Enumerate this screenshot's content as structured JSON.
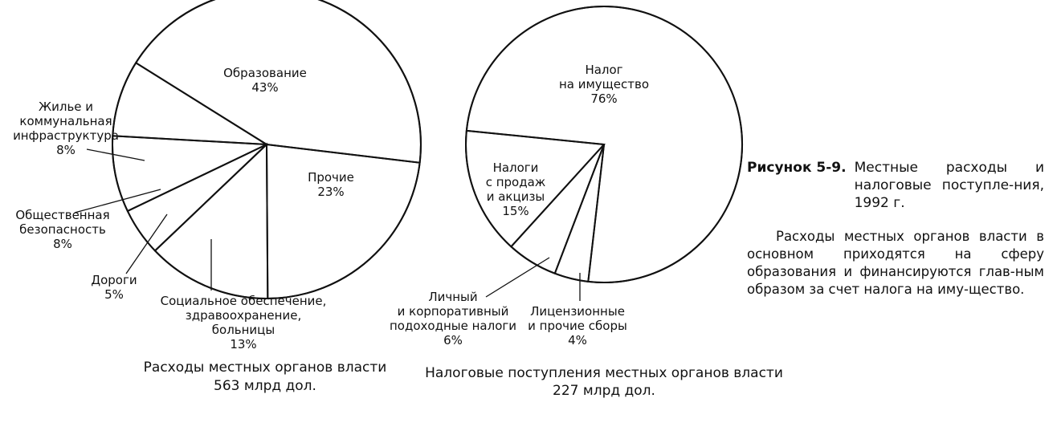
{
  "figure": {
    "id": "Рисунок 5-9.",
    "caption": "Местные расходы и налоговые поступле-ния, 1992 г.",
    "description": "Расходы местных органов власти в основном приходятся на сферу образования и финансируются глав-ным образом за счет налога на иму-щество."
  },
  "chart_data": [
    {
      "type": "pie",
      "title": "Расходы местных органов власти",
      "subtitle": "563 млрд дол.",
      "slices": [
        {
          "label": [
            "Образование"
          ],
          "percent_label": "43%",
          "value": 43
        },
        {
          "label": [
            "Прочие"
          ],
          "percent_label": "23%",
          "value": 23
        },
        {
          "label": [
            "Социальное обеспечение,",
            "здравоохранение,",
            "больницы"
          ],
          "percent_label": "13%",
          "value": 13
        },
        {
          "label": [
            "Дороги"
          ],
          "percent_label": "5%",
          "value": 5
        },
        {
          "label": [
            "Общественная",
            "безопасность"
          ],
          "percent_label": "8%",
          "value": 8
        },
        {
          "label": [
            "Жилье и",
            "коммунальная",
            "инфраструктура"
          ],
          "percent_label": "8%",
          "value": 8
        }
      ]
    },
    {
      "type": "pie",
      "title": "Налоговые поступления местных органов власти",
      "subtitle": "227 млрд дол.",
      "slices": [
        {
          "label": [
            "Налог",
            "на имущество"
          ],
          "percent_label": "76%",
          "value": 76
        },
        {
          "label": [
            "Лицензионные",
            "и прочие сборы"
          ],
          "percent_label": "4%",
          "value": 4
        },
        {
          "label": [
            "Личный",
            "и корпоративный",
            "подоходные налоги"
          ],
          "percent_label": "6%",
          "value": 6
        },
        {
          "label": [
            "Налоги",
            "с продаж",
            "и акцизы"
          ],
          "percent_label": "15%",
          "value": 15
        }
      ]
    }
  ]
}
